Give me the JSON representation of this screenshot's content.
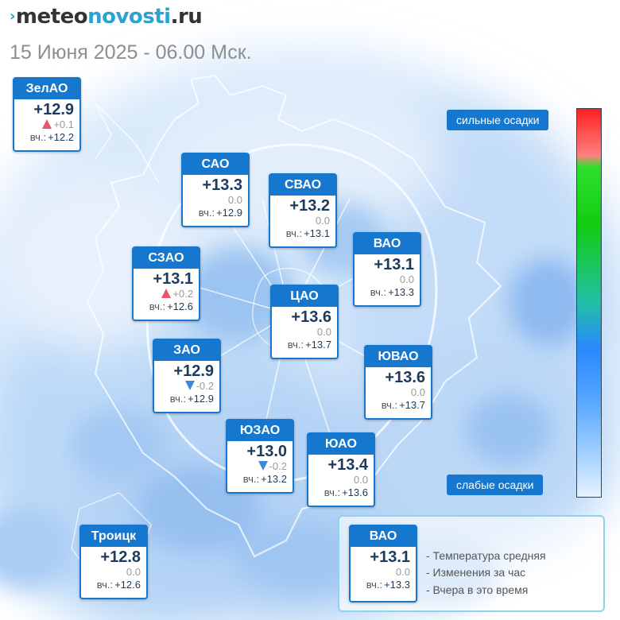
{
  "header": {
    "logo": {
      "mark": "›",
      "part1": "meteo",
      "part2": "novosti",
      "part3": ".ru"
    },
    "date": "15 Июня 2025 - 06.00 Мск."
  },
  "yesterday_label": "вч.:",
  "districts": [
    {
      "name": "ЗелАО",
      "temp": "+12.9",
      "trend": "up",
      "change": "+0.1",
      "yesterday": "+12.2"
    },
    {
      "name": "САО",
      "temp": "+13.3",
      "trend": "none",
      "change": "0.0",
      "yesterday": "+12.9"
    },
    {
      "name": "СВАО",
      "temp": "+13.2",
      "trend": "none",
      "change": "0.0",
      "yesterday": "+13.1"
    },
    {
      "name": "ВАО",
      "temp": "+13.1",
      "trend": "none",
      "change": "0.0",
      "yesterday": "+13.3"
    },
    {
      "name": "СЗАО",
      "temp": "+13.1",
      "trend": "up",
      "change": "+0.2",
      "yesterday": "+12.6"
    },
    {
      "name": "ЦАО",
      "temp": "+13.6",
      "trend": "none",
      "change": "0.0",
      "yesterday": "+13.7"
    },
    {
      "name": "ЗАО",
      "temp": "+12.9",
      "trend": "down",
      "change": "-0.2",
      "yesterday": "+12.9"
    },
    {
      "name": "ЮВАО",
      "temp": "+13.6",
      "trend": "none",
      "change": "0.0",
      "yesterday": "+13.7"
    },
    {
      "name": "ЮЗАО",
      "temp": "+13.0",
      "trend": "down",
      "change": "-0.2",
      "yesterday": "+13.2"
    },
    {
      "name": "ЮАО",
      "temp": "+13.4",
      "trend": "none",
      "change": "0.0",
      "yesterday": "+13.6"
    },
    {
      "name": "Троицк",
      "temp": "+12.8",
      "trend": "none",
      "change": "0.0",
      "yesterday": "+12.6"
    }
  ],
  "precip_scale": {
    "top_label": "сильные осадки",
    "bottom_label": "слабые осадки",
    "colors": [
      "#ff2020",
      "#2ce02c",
      "#2a88ff",
      "#e6f2ff"
    ]
  },
  "legend": {
    "sample": {
      "name": "ВАО",
      "temp": "+13.1",
      "change": "0.0",
      "yesterday": "+13.3"
    },
    "items": [
      "- Температура средняя",
      "- Изменения за час",
      "- Вчера в это время"
    ]
  }
}
